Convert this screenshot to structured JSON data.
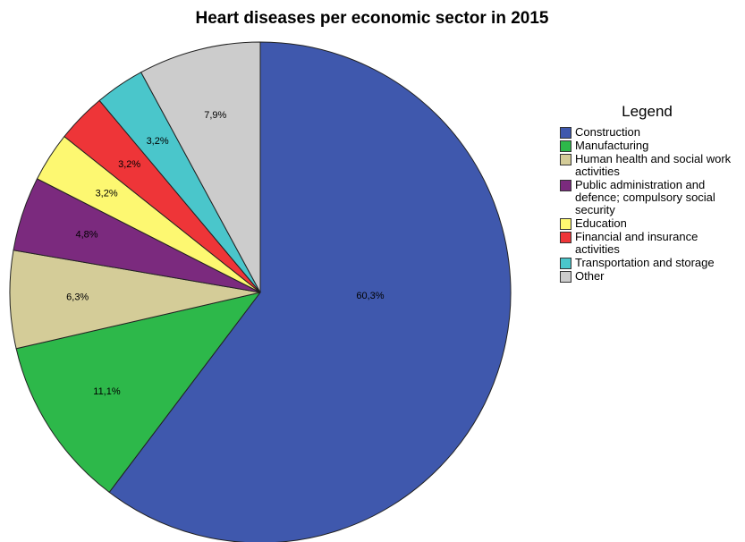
{
  "chart_data": {
    "type": "pie",
    "title": "Heart diseases per economic sector in 2015",
    "legend_title": "Legend",
    "legend": "right",
    "categories": [
      "Construction",
      "Manufacturing",
      "Human health and social work activities",
      "Public administration and defence; compulsory social security",
      "Education",
      "Financial and insurance activities",
      "Transportation and storage",
      "Other"
    ],
    "values": [
      60.3,
      11.1,
      6.3,
      4.8,
      3.2,
      3.2,
      3.2,
      7.9
    ],
    "value_labels": [
      "60,3%",
      "11,1%",
      "6,3%",
      "4,8%",
      "3,2%",
      "3,2%",
      "3,2%",
      "7,9%"
    ],
    "colors": [
      "#3f58ad",
      "#2db84a",
      "#d4cc98",
      "#7b2a7e",
      "#fdf871",
      "#ee3538",
      "#4ac6cb",
      "#cccccc"
    ]
  }
}
